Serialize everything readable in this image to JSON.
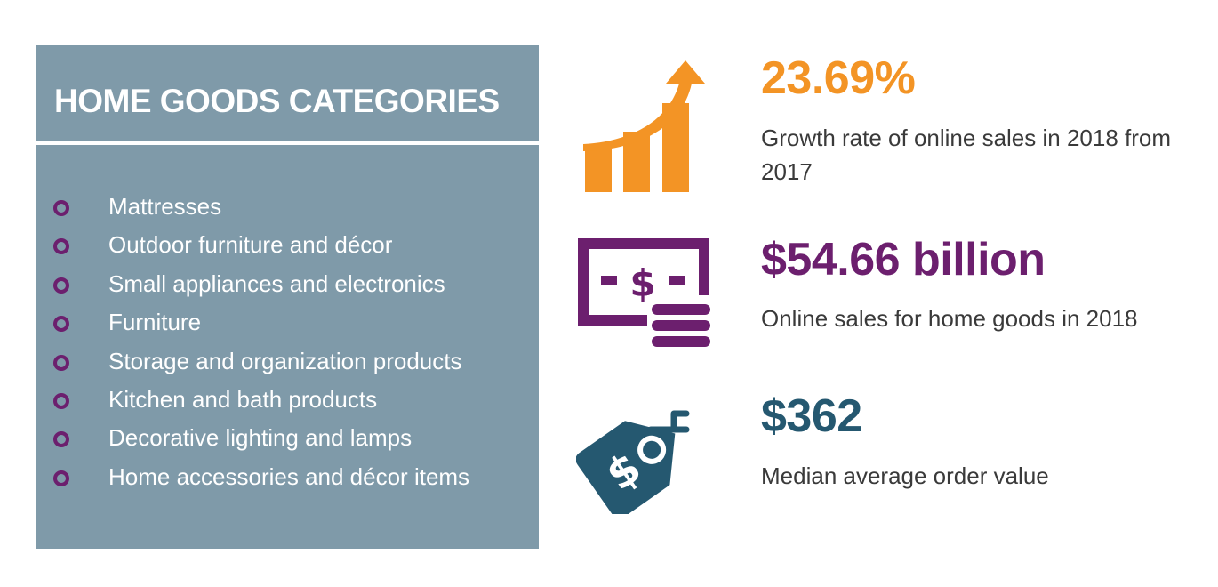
{
  "panel": {
    "title": "HOME GOODS CATEGORIES",
    "background_color": "#7f9aa9",
    "bullet_color": "#6c1f6e",
    "items": [
      {
        "label": "Mattresses"
      },
      {
        "label": "Outdoor furniture and décor"
      },
      {
        "label": "Small appliances and electronics"
      },
      {
        "label": "Furniture"
      },
      {
        "label": "Storage and organization products"
      },
      {
        "label": "Kitchen and bath products"
      },
      {
        "label": "Decorative lighting and lamps"
      },
      {
        "label": "Home accessories and décor items"
      }
    ]
  },
  "stats": [
    {
      "icon": "growth-chart-icon",
      "value": "23.69%",
      "description": "Growth rate of online sales in 2018 from 2017",
      "color": "#f39425"
    },
    {
      "icon": "money-stack-icon",
      "value": "$54.66 billion",
      "description": "Online sales for home goods in 2018",
      "color": "#6c1f6e"
    },
    {
      "icon": "price-tag-icon",
      "value": "$362",
      "description": "Median average order value",
      "color": "#255870"
    }
  ]
}
